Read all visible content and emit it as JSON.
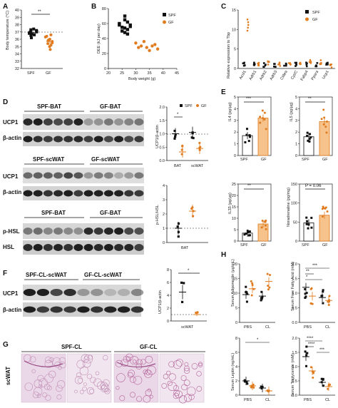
{
  "colors": {
    "spf": "#111111",
    "gf": "#e07b1f",
    "gf_fill": "#f6c38c"
  },
  "panels": {
    "A": {
      "label": "A",
      "ylabel": "Body temperature (°C)",
      "yticks": [
        "40",
        "39",
        "38",
        "37",
        "36",
        "35",
        "34",
        "33",
        "32"
      ],
      "xticks": [
        "SPF",
        "GF"
      ],
      "sig": "**"
    },
    "B": {
      "label": "B",
      "ylabel": "DEE (kJ per day)",
      "xlabel": "Body weight (g)",
      "xticks": [
        "20",
        "25",
        "30",
        "35",
        "40",
        "45"
      ],
      "yticks": [
        "80",
        "60",
        "40",
        "20",
        "0"
      ],
      "legend": [
        "SPF",
        "GF"
      ]
    },
    "C": {
      "label": "C",
      "ylabel": "Relative expression to Tbp",
      "yticks": [
        "15",
        "10",
        "5",
        "0"
      ],
      "genes": [
        "Acsl1",
        "Adrb1",
        "Adrb2",
        "Adrb3",
        "Cidea",
        "Cyt/C",
        "Fabp4",
        "Ppara",
        "Ucp1"
      ],
      "legend": [
        "SPF",
        "GF"
      ]
    },
    "D": {
      "label": "D",
      "blot1": {
        "spf": "SPF-BAT",
        "gf": "GF-BAT",
        "rows": [
          "UCP1",
          "β-actin"
        ]
      },
      "blot2": {
        "spf": "SPF-scWAT",
        "gf": "GF-scWAT",
        "rows": [
          "UCP1",
          "β-actin"
        ]
      },
      "blot3": {
        "spf": "SPF-BAT",
        "gf": "GF-BAT",
        "rows": [
          "p-HSL",
          "HSL"
        ]
      },
      "chart1": {
        "ylabel": "UCP1/β-actin",
        "yticks": [
          "2.0",
          "1.5",
          "1.0",
          "0.5",
          "0.0"
        ],
        "groups": [
          "BAT",
          "scWAT"
        ],
        "legend": [
          "SPF",
          "GF"
        ],
        "sig": "*"
      },
      "chart2": {
        "ylabel": "p-HSL/HSL",
        "yticks": [
          "4",
          "3",
          "2",
          "1",
          "0"
        ],
        "groups": [
          "BAT"
        ]
      }
    },
    "E": {
      "label": "E",
      "il4": {
        "ylabel": "IL4 (pg/μg)",
        "yticks": [
          "5",
          "4",
          "3",
          "2",
          "1",
          "0"
        ],
        "sig": "***",
        "xticks": [
          "SPF",
          "GF"
        ]
      },
      "il5": {
        "ylabel": "IL5 (pg/μg)",
        "yticks": [
          "5",
          "4",
          "3",
          "2",
          "1",
          "0"
        ],
        "sig": "**",
        "xticks": [
          "SPF",
          "GF"
        ]
      },
      "il33": {
        "ylabel": "IL33 (pg/μg)",
        "yticks": [
          "25",
          "20",
          "15",
          "10",
          "5",
          "0"
        ],
        "sig": "**",
        "xticks": [
          "SPF",
          "GF"
        ]
      },
      "nor": {
        "ylabel": "Noradrenaline (pg/mg)",
        "yticks": [
          "150",
          "100",
          "50",
          "0"
        ],
        "sig": "P = 0.06",
        "xticks": [
          "SPF",
          "GF"
        ]
      }
    },
    "F": {
      "label": "F",
      "blot": {
        "spf": "SPF-CL-scWAT",
        "gf": "GF-CL-scWAT",
        "rows": [
          "UCP1",
          "β-actin"
        ]
      },
      "chart": {
        "ylabel": "UCP1/β-actin",
        "yticks": [
          "8",
          "6",
          "4",
          "2",
          "0"
        ],
        "groups": [
          "scWAT"
        ],
        "sig": "*"
      }
    },
    "G": {
      "label": "G",
      "row": "scWAT",
      "groups": [
        "SPF-CL",
        "GF-CL"
      ]
    },
    "H": {
      "label": "H",
      "adipo": {
        "ylabel": "Serum Adiponectin (μg/mL)",
        "yticks": [
          "20",
          "15",
          "10",
          "5",
          "0"
        ],
        "xticks": [
          "PBS",
          "CL"
        ]
      },
      "ffa": {
        "ylabel": "Serum Free Fatty Acid (mM)",
        "yticks": [
          "2.0",
          "1.5",
          "1.0",
          "0.5",
          "0.0"
        ],
        "xticks": [
          "PBS",
          "CL"
        ],
        "sig": [
          "***",
          "**",
          "*"
        ]
      },
      "leptin": {
        "ylabel": "Serum Leptin (ng/mL)",
        "yticks": [
          "8",
          "6",
          "4",
          "2",
          "0"
        ],
        "xticks": [
          "PBS",
          "CL"
        ],
        "sig": [
          "*"
        ]
      },
      "trig": {
        "ylabel": "Serum Triglyceride (mM)",
        "yticks": [
          "2.0",
          "1.5",
          "1.0",
          "0.5",
          "0.0"
        ],
        "xticks": [
          "PBS",
          "CL"
        ],
        "sig": [
          "****",
          "****",
          "***"
        ]
      }
    }
  },
  "chart_data": [
    {
      "panel": "A",
      "type": "scatter",
      "categories": [
        "SPF",
        "GF"
      ],
      "series": [
        {
          "name": "SPF",
          "values": [
            37.0,
            36.8,
            37.2,
            36.5,
            37.4,
            36.9,
            37.1,
            36.2,
            37.3,
            36.7,
            37.0,
            36.6
          ]
        },
        {
          "name": "GF",
          "values": [
            35.9,
            36.3,
            35.5,
            36.6,
            35.2,
            35.8,
            36.0,
            35.4,
            36.4,
            35.0,
            34.6,
            35.7
          ]
        }
      ],
      "ylim": [
        32,
        40
      ]
    },
    {
      "panel": "B",
      "type": "scatter",
      "series": [
        {
          "name": "SPF",
          "x": [
            24,
            25,
            26,
            27,
            28,
            26,
            27,
            25,
            28,
            26,
            27,
            24,
            26
          ],
          "y": [
            60,
            55,
            65,
            52,
            58,
            48,
            62,
            50,
            56,
            54,
            46,
            58,
            70
          ]
        },
        {
          "name": "GF",
          "x": [
            30,
            32,
            34,
            36,
            38,
            33,
            37,
            31,
            35
          ],
          "y": [
            34,
            30,
            28,
            30,
            26,
            36,
            32,
            28,
            24
          ]
        }
      ],
      "xlim": [
        20,
        45
      ],
      "ylim": [
        0,
        80
      ]
    },
    {
      "panel": "C",
      "type": "scatter",
      "categories": [
        "Acsl1",
        "Adrb1",
        "Adrb2",
        "Adrb3",
        "Cidea",
        "Cyt/C",
        "Fabp4",
        "Ppara",
        "Ucp1"
      ],
      "series": [
        {
          "name": "SPF",
          "values": [
            1.0,
            1.0,
            1.0,
            1.0,
            1.0,
            1.0,
            1.0,
            1.0,
            1.0
          ]
        },
        {
          "name": "GF",
          "values": [
            11.5,
            1.2,
            1.3,
            1.1,
            1.5,
            0.9,
            1.6,
            1.6,
            0.8
          ]
        }
      ],
      "ylim": [
        0,
        15
      ]
    },
    {
      "panel": "D-UCP1",
      "type": "scatter",
      "categories": [
        "BAT",
        "scWAT"
      ],
      "series": [
        {
          "name": "SPF",
          "values": [
            1.0,
            1.05
          ]
        },
        {
          "name": "GF",
          "values": [
            0.32,
            0.45
          ]
        }
      ],
      "ylim": [
        0,
        2
      ]
    },
    {
      "panel": "D-pHSL",
      "type": "scatter",
      "categories": [
        "BAT"
      ],
      "series": [
        {
          "name": "SPF",
          "values": [
            1.0
          ]
        },
        {
          "name": "GF",
          "values": [
            2.2
          ]
        }
      ],
      "ylim": [
        0,
        4
      ]
    },
    {
      "panel": "E-IL4",
      "type": "bar",
      "categories": [
        "SPF",
        "GF"
      ],
      "values": [
        1.7,
        3.2
      ],
      "ylim": [
        0,
        5
      ]
    },
    {
      "panel": "E-IL5",
      "type": "bar",
      "categories": [
        "SPF",
        "GF"
      ],
      "values": [
        1.6,
        2.9
      ],
      "ylim": [
        0,
        5
      ]
    },
    {
      "panel": "E-IL33",
      "type": "bar",
      "categories": [
        "SPF",
        "GF"
      ],
      "values": [
        3.5,
        7.5
      ],
      "ylim": [
        0,
        25
      ]
    },
    {
      "panel": "E-Nor",
      "type": "bar",
      "categories": [
        "SPF",
        "GF"
      ],
      "values": [
        48,
        68
      ],
      "ylim": [
        0,
        150
      ]
    },
    {
      "panel": "F",
      "type": "scatter",
      "categories": [
        "scWAT"
      ],
      "series": [
        {
          "name": "SPF",
          "values": [
            4.5
          ]
        },
        {
          "name": "GF",
          "values": [
            1.0
          ]
        }
      ],
      "ylim": [
        0,
        8
      ]
    },
    {
      "panel": "H-Adiponectin",
      "type": "scatter",
      "categories": [
        "PBS",
        "CL"
      ],
      "series": [
        {
          "name": "SPF",
          "values": [
            9.5,
            9.0
          ]
        },
        {
          "name": "GF",
          "values": [
            11.5,
            14.0
          ]
        }
      ],
      "ylim": [
        0,
        20
      ]
    },
    {
      "panel": "H-FFA",
      "type": "scatter",
      "categories": [
        "PBS",
        "CL"
      ],
      "series": [
        {
          "name": "SPF",
          "values": [
            1.2,
            0.85
          ]
        },
        {
          "name": "GF",
          "values": [
            0.9,
            0.75
          ]
        }
      ],
      "ylim": [
        0,
        2
      ]
    },
    {
      "panel": "H-Leptin",
      "type": "scatter",
      "categories": [
        "PBS",
        "CL"
      ],
      "series": [
        {
          "name": "SPF",
          "values": [
            2.0,
            1.0
          ]
        },
        {
          "name": "GF",
          "values": [
            1.3,
            0.6
          ]
        }
      ],
      "ylim": [
        0,
        8
      ]
    },
    {
      "panel": "H-Trig",
      "type": "scatter",
      "categories": [
        "PBS",
        "CL"
      ],
      "series": [
        {
          "name": "SPF",
          "values": [
            1.35,
            0.45
          ]
        },
        {
          "name": "GF",
          "values": [
            0.85,
            0.3
          ]
        }
      ],
      "ylim": [
        0,
        2
      ]
    }
  ]
}
